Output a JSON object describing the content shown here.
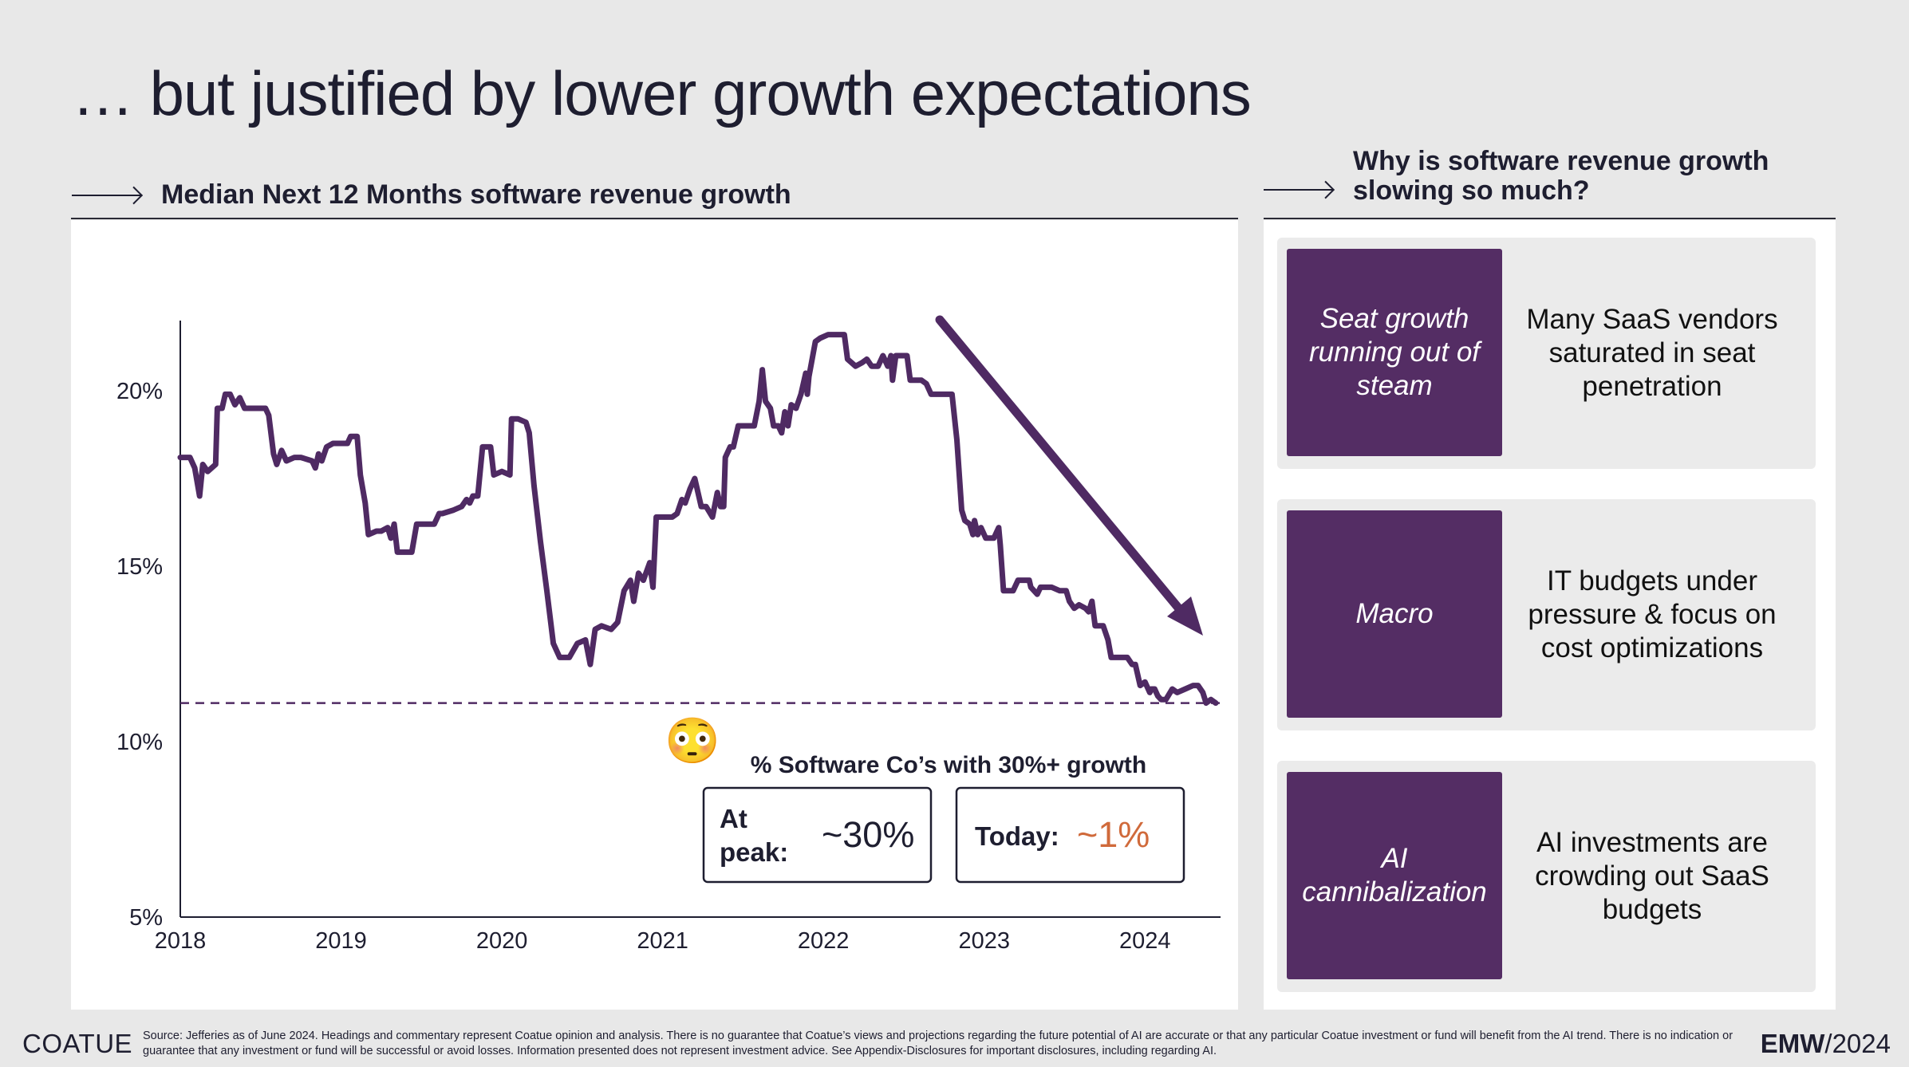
{
  "slide": {
    "title": "… but justified by lower growth expectations",
    "left_heading": "Median Next 12 Months software revenue growth",
    "right_heading_line1": "Why is software revenue growth",
    "right_heading_line2": "slowing so much?"
  },
  "chart_data": {
    "type": "line",
    "title": "Median Next 12 Months software revenue growth",
    "xlabel": "",
    "ylabel": "",
    "xlim": [
      2018,
      2024.47
    ],
    "ylim": [
      5,
      22
    ],
    "x_ticks": [
      "2018",
      "2019",
      "2020",
      "2021",
      "2022",
      "2023",
      "2024"
    ],
    "y_ticks": [
      "5%",
      "10%",
      "15%",
      "20%"
    ],
    "y_tick_values": [
      5,
      10,
      15,
      20
    ],
    "reference_line": {
      "value": 11.1,
      "style": "dashed"
    },
    "series": [
      {
        "name": "Median NTM revenue growth",
        "color": "#4f2a63",
        "points": [
          [
            2018.0,
            18.1
          ],
          [
            2018.06,
            18.1
          ],
          [
            2018.09,
            17.8
          ],
          [
            2018.12,
            17.0
          ],
          [
            2018.14,
            17.9
          ],
          [
            2018.17,
            17.7
          ],
          [
            2018.22,
            17.9
          ],
          [
            2018.23,
            19.5
          ],
          [
            2018.26,
            19.5
          ],
          [
            2018.28,
            19.9
          ],
          [
            2018.31,
            19.9
          ],
          [
            2018.34,
            19.6
          ],
          [
            2018.37,
            19.8
          ],
          [
            2018.4,
            19.5
          ],
          [
            2018.45,
            19.5
          ],
          [
            2018.49,
            19.5
          ],
          [
            2018.53,
            19.5
          ],
          [
            2018.55,
            19.3
          ],
          [
            2018.58,
            18.2
          ],
          [
            2018.6,
            17.9
          ],
          [
            2018.63,
            18.3
          ],
          [
            2018.66,
            18.0
          ],
          [
            2018.71,
            18.1
          ],
          [
            2018.75,
            18.1
          ],
          [
            2018.82,
            18.0
          ],
          [
            2018.84,
            17.8
          ],
          [
            2018.86,
            18.2
          ],
          [
            2018.88,
            18.0
          ],
          [
            2018.91,
            18.4
          ],
          [
            2018.95,
            18.5
          ],
          [
            2018.98,
            18.5
          ],
          [
            2019.04,
            18.5
          ],
          [
            2019.06,
            18.7
          ],
          [
            2019.1,
            18.7
          ],
          [
            2019.12,
            17.6
          ],
          [
            2019.15,
            16.8
          ],
          [
            2019.17,
            15.9
          ],
          [
            2019.22,
            16.0
          ],
          [
            2019.25,
            16.0
          ],
          [
            2019.29,
            16.1
          ],
          [
            2019.31,
            15.8
          ],
          [
            2019.33,
            16.2
          ],
          [
            2019.35,
            15.4
          ],
          [
            2019.4,
            15.4
          ],
          [
            2019.44,
            15.4
          ],
          [
            2019.47,
            16.2
          ],
          [
            2019.52,
            16.2
          ],
          [
            2019.58,
            16.2
          ],
          [
            2019.61,
            16.5
          ],
          [
            2019.63,
            16.5
          ],
          [
            2019.7,
            16.6
          ],
          [
            2019.75,
            16.7
          ],
          [
            2019.78,
            16.9
          ],
          [
            2019.8,
            16.8
          ],
          [
            2019.82,
            17.0
          ],
          [
            2019.85,
            17.0
          ],
          [
            2019.88,
            18.4
          ],
          [
            2019.93,
            18.4
          ],
          [
            2019.95,
            17.6
          ],
          [
            2020.0,
            17.7
          ],
          [
            2020.05,
            17.6
          ],
          [
            2020.06,
            19.2
          ],
          [
            2020.1,
            19.2
          ],
          [
            2020.15,
            19.1
          ],
          [
            2020.17,
            18.8
          ],
          [
            2020.2,
            17.3
          ],
          [
            2020.24,
            15.7
          ],
          [
            2020.28,
            14.3
          ],
          [
            2020.32,
            12.8
          ],
          [
            2020.36,
            12.4
          ],
          [
            2020.42,
            12.4
          ],
          [
            2020.47,
            12.8
          ],
          [
            2020.52,
            12.9
          ],
          [
            2020.55,
            12.2
          ],
          [
            2020.58,
            13.2
          ],
          [
            2020.62,
            13.3
          ],
          [
            2020.68,
            13.2
          ],
          [
            2020.72,
            13.4
          ],
          [
            2020.76,
            14.3
          ],
          [
            2020.8,
            14.6
          ],
          [
            2020.82,
            14.0
          ],
          [
            2020.85,
            14.8
          ],
          [
            2020.88,
            14.6
          ],
          [
            2020.92,
            15.1
          ],
          [
            2020.94,
            14.4
          ],
          [
            2020.96,
            16.4
          ],
          [
            2021.0,
            16.4
          ],
          [
            2021.06,
            16.4
          ],
          [
            2021.09,
            16.5
          ],
          [
            2021.12,
            16.9
          ],
          [
            2021.14,
            16.8
          ],
          [
            2021.17,
            17.2
          ],
          [
            2021.2,
            17.5
          ],
          [
            2021.24,
            16.7
          ],
          [
            2021.27,
            16.7
          ],
          [
            2021.31,
            16.4
          ],
          [
            2021.34,
            17.1
          ],
          [
            2021.36,
            16.7
          ],
          [
            2021.38,
            16.7
          ],
          [
            2021.39,
            18.1
          ],
          [
            2021.42,
            18.4
          ],
          [
            2021.44,
            18.4
          ],
          [
            2021.47,
            19.0
          ],
          [
            2021.52,
            19.0
          ],
          [
            2021.57,
            19.0
          ],
          [
            2021.6,
            19.7
          ],
          [
            2021.62,
            20.6
          ],
          [
            2021.64,
            19.7
          ],
          [
            2021.67,
            19.5
          ],
          [
            2021.69,
            19.0
          ],
          [
            2021.72,
            19.0
          ],
          [
            2021.74,
            18.8
          ],
          [
            2021.76,
            19.4
          ],
          [
            2021.78,
            19.0
          ],
          [
            2021.8,
            19.6
          ],
          [
            2021.83,
            19.5
          ],
          [
            2021.86,
            19.9
          ],
          [
            2021.89,
            20.5
          ],
          [
            2021.9,
            19.9
          ],
          [
            2021.91,
            20.4
          ],
          [
            2021.95,
            21.4
          ],
          [
            2021.98,
            21.5
          ],
          [
            2022.03,
            21.6
          ],
          [
            2022.06,
            21.6
          ],
          [
            2022.09,
            21.6
          ],
          [
            2022.13,
            21.6
          ],
          [
            2022.15,
            20.9
          ],
          [
            2022.2,
            20.7
          ],
          [
            2022.24,
            20.8
          ],
          [
            2022.27,
            20.9
          ],
          [
            2022.3,
            20.7
          ],
          [
            2022.34,
            20.7
          ],
          [
            2022.37,
            21.0
          ],
          [
            2022.4,
            20.7
          ],
          [
            2022.42,
            21.0
          ],
          [
            2022.43,
            20.3
          ],
          [
            2022.45,
            21.0
          ],
          [
            2022.49,
            21.0
          ],
          [
            2022.52,
            21.0
          ],
          [
            2022.54,
            20.3
          ],
          [
            2022.58,
            20.3
          ],
          [
            2022.61,
            20.3
          ],
          [
            2022.64,
            20.2
          ],
          [
            2022.67,
            19.9
          ],
          [
            2022.71,
            19.9
          ],
          [
            2022.77,
            19.9
          ],
          [
            2022.8,
            19.9
          ],
          [
            2022.83,
            18.6
          ],
          [
            2022.86,
            16.6
          ],
          [
            2022.88,
            16.3
          ],
          [
            2022.91,
            16.2
          ],
          [
            2022.93,
            15.9
          ],
          [
            2022.94,
            16.3
          ],
          [
            2022.96,
            15.9
          ],
          [
            2022.98,
            16.1
          ],
          [
            2023.01,
            15.8
          ],
          [
            2023.06,
            15.8
          ],
          [
            2023.09,
            16.1
          ],
          [
            2023.1,
            15.6
          ],
          [
            2023.12,
            14.3
          ],
          [
            2023.18,
            14.3
          ],
          [
            2023.21,
            14.6
          ],
          [
            2023.24,
            14.6
          ],
          [
            2023.28,
            14.6
          ],
          [
            2023.29,
            14.4
          ],
          [
            2023.33,
            14.2
          ],
          [
            2023.35,
            14.4
          ],
          [
            2023.37,
            14.4
          ],
          [
            2023.42,
            14.4
          ],
          [
            2023.47,
            14.3
          ],
          [
            2023.51,
            14.3
          ],
          [
            2023.53,
            14.0
          ],
          [
            2023.56,
            13.8
          ],
          [
            2023.59,
            13.9
          ],
          [
            2023.63,
            13.8
          ],
          [
            2023.65,
            13.7
          ],
          [
            2023.67,
            14.0
          ],
          [
            2023.69,
            13.3
          ],
          [
            2023.74,
            13.3
          ],
          [
            2023.77,
            12.9
          ],
          [
            2023.79,
            12.4
          ],
          [
            2023.83,
            12.4
          ],
          [
            2023.89,
            12.4
          ],
          [
            2023.92,
            12.2
          ],
          [
            2023.94,
            12.2
          ],
          [
            2023.97,
            11.6
          ],
          [
            2024.0,
            11.7
          ],
          [
            2024.03,
            11.4
          ],
          [
            2024.04,
            11.5
          ],
          [
            2024.06,
            11.5
          ],
          [
            2024.08,
            11.3
          ],
          [
            2024.1,
            11.2
          ],
          [
            2024.13,
            11.2
          ],
          [
            2024.17,
            11.5
          ],
          [
            2024.2,
            11.4
          ],
          [
            2024.25,
            11.5
          ],
          [
            2024.3,
            11.6
          ],
          [
            2024.33,
            11.6
          ],
          [
            2024.36,
            11.4
          ],
          [
            2024.38,
            11.1
          ],
          [
            2024.41,
            11.2
          ],
          [
            2024.44,
            11.1
          ]
        ]
      }
    ],
    "annotation": {
      "emoji": "😳",
      "heading": "% Software Co’s with 30%+ growth",
      "peak_label_line1": "At",
      "peak_label_line2": "peak:",
      "peak_value": "~30%",
      "today_label": "Today:",
      "today_value": "~1%",
      "today_color": "#d06a3b"
    }
  },
  "reasons": [
    {
      "box": "Seat growth running out of steam",
      "text": "Many SaaS vendors saturated in seat penetration"
    },
    {
      "box": "Macro",
      "text": "IT budgets under pressure & focus on cost optimizations"
    },
    {
      "box": "AI cannibalization",
      "text": "AI investments are crowding out SaaS budgets"
    }
  ],
  "colors": {
    "accent": "#542d64",
    "line": "#4f2a63",
    "highlight": "#d06a3b",
    "background": "#e8e8e8"
  },
  "footer": {
    "logo": "COATUE",
    "source": "Source: Jefferies as of June 2024. Headings and commentary represent Coatue opinion and analysis. There is no guarantee that Coatue’s views and projections regarding the future potential of AI are accurate or that any particular Coatue investment or fund will benefit from the AI trend.  There is no indication or guarantee that any investment or fund will be successful or avoid losses. Information presented does not represent investment advice. See Appendix-Disclosures for important disclosures, including regarding AI.",
    "event_bold": "EMW",
    "event_rest": "/2024"
  }
}
